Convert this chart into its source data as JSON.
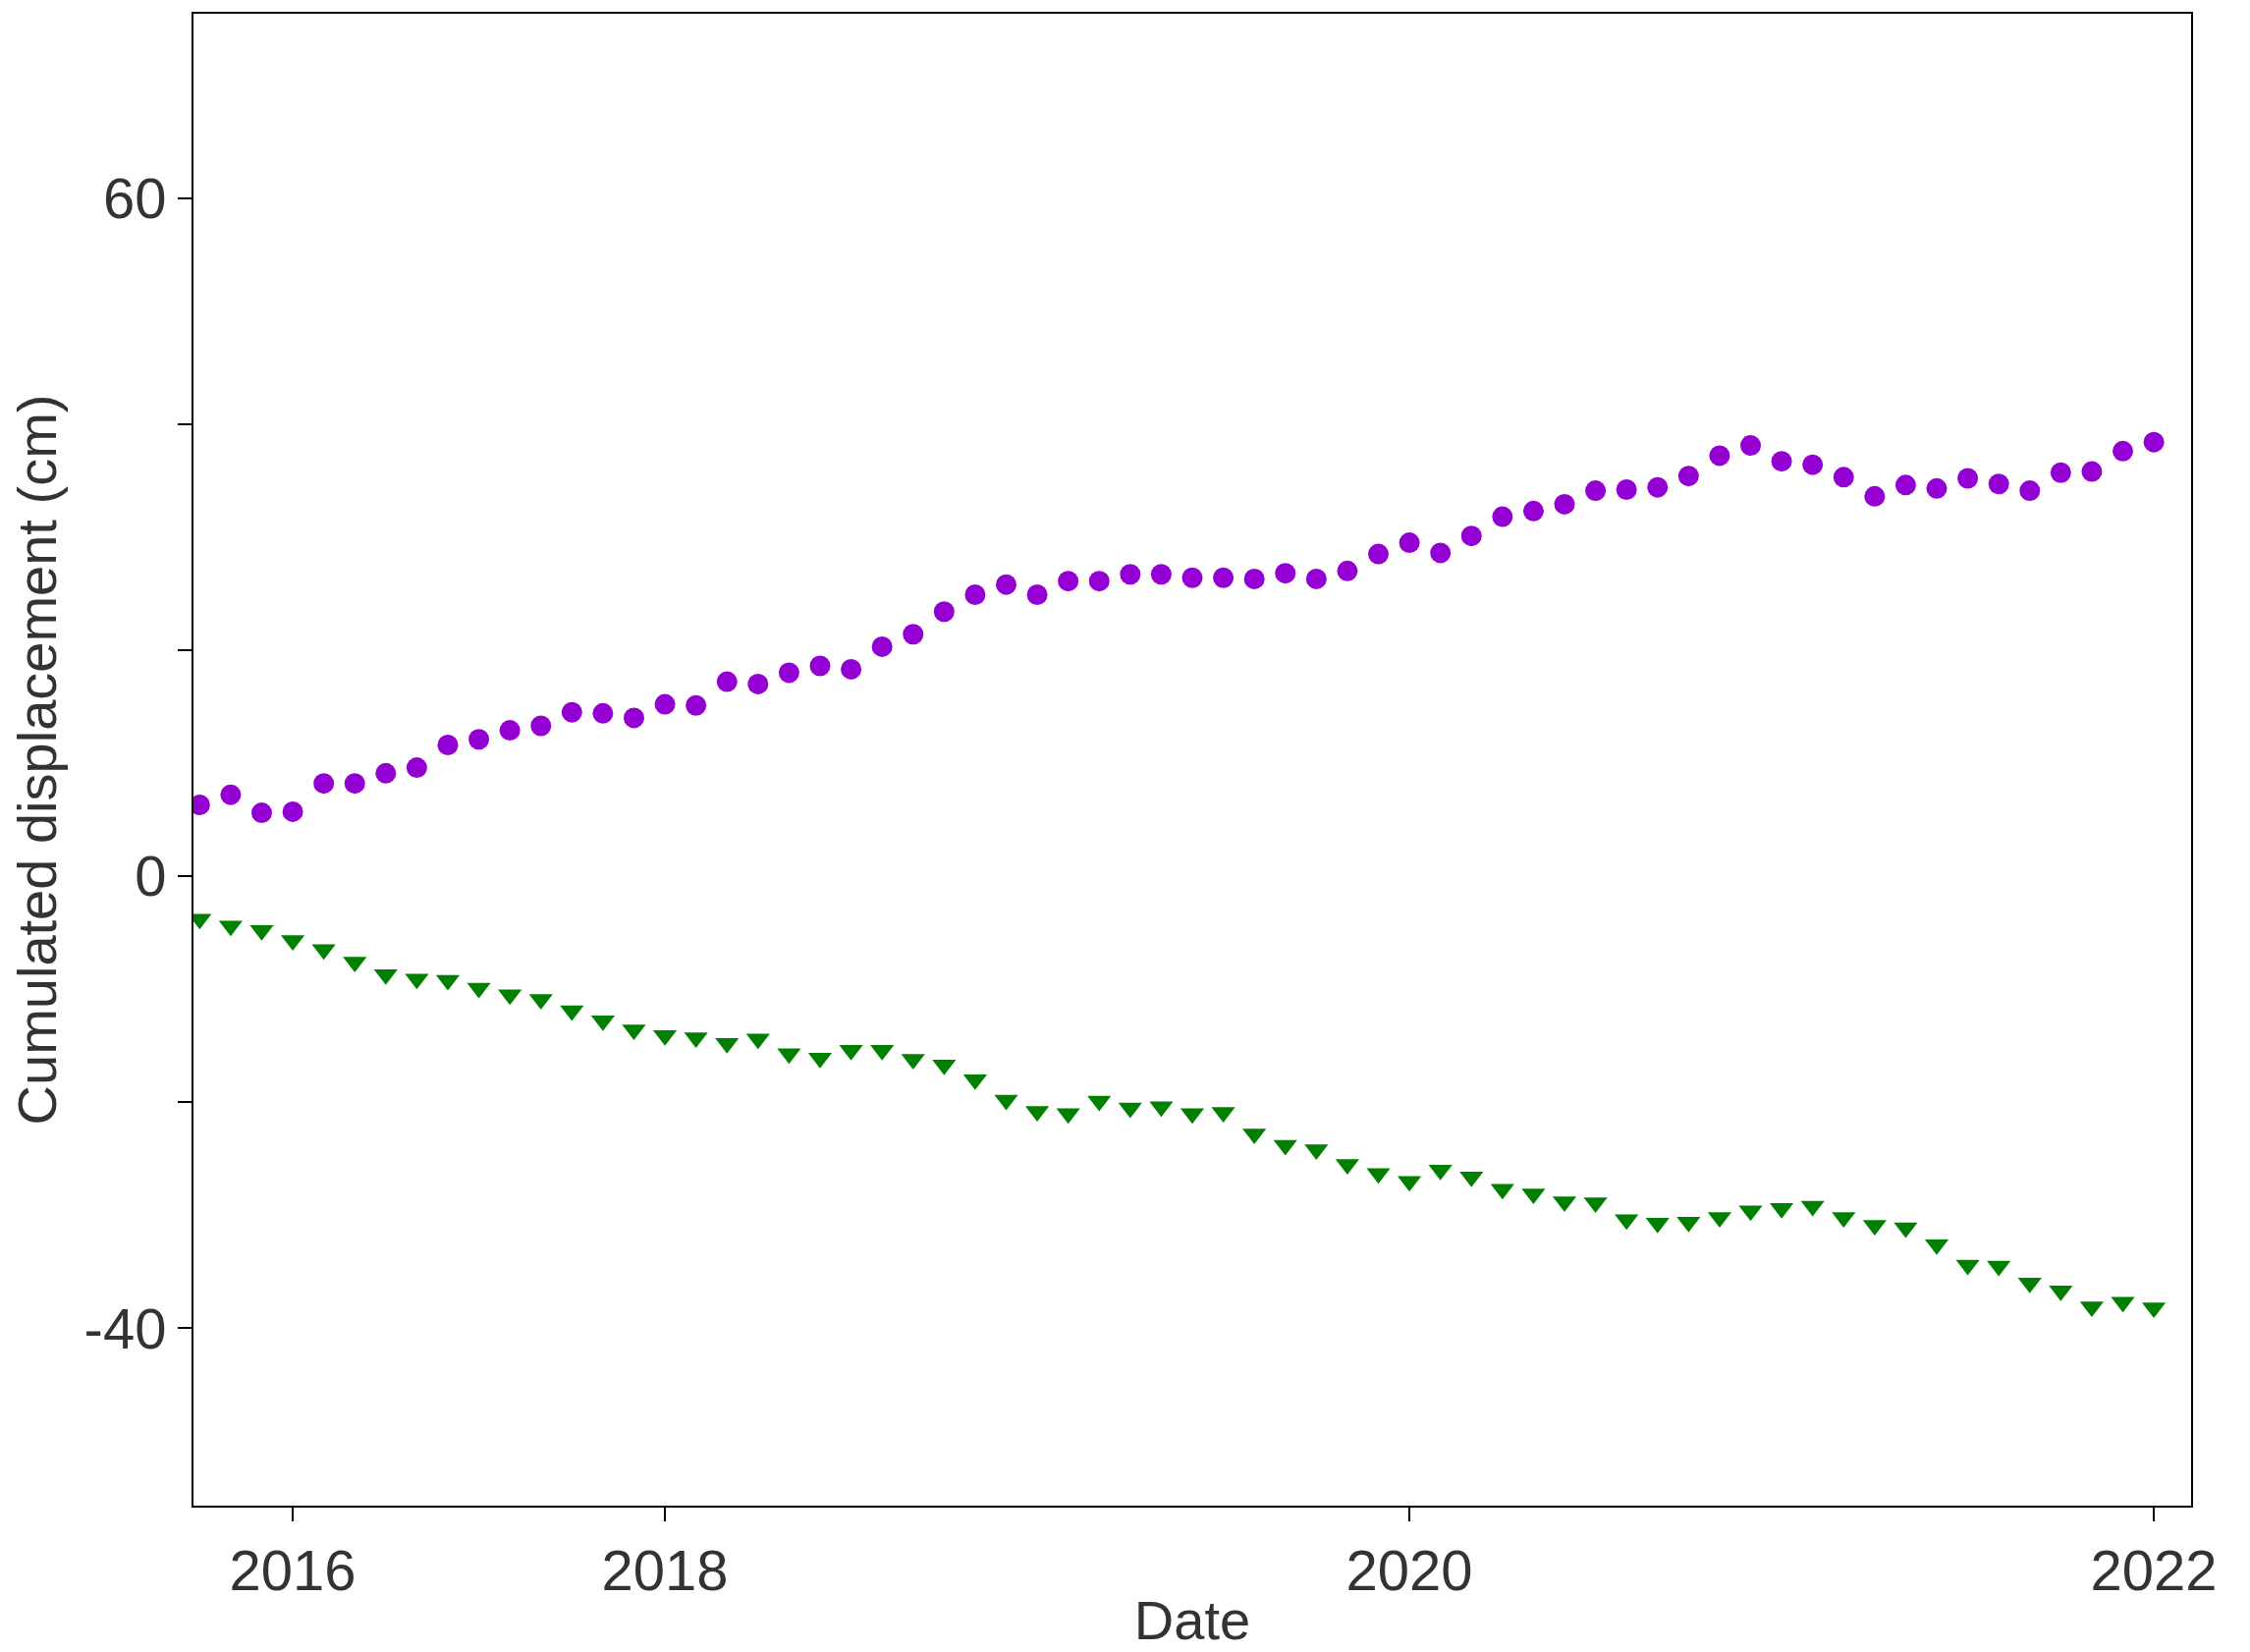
{
  "chart_data": {
    "type": "scatter",
    "xlabel": "Date",
    "ylabel": "Cumulated displacement (cm)",
    "categories": [
      null,
      null,
      null,
      "2016",
      null,
      null,
      null,
      null,
      null,
      null,
      null,
      null,
      null,
      null,
      null,
      "2018",
      null,
      null,
      null,
      null,
      null,
      null,
      null,
      null,
      null,
      null,
      null,
      null,
      null,
      null,
      null,
      null,
      null,
      null,
      null,
      null,
      null,
      null,
      null,
      "2020",
      null,
      null,
      null,
      null,
      null,
      null,
      null,
      null,
      null,
      null,
      null,
      null,
      null,
      null,
      null,
      null,
      null,
      null,
      null,
      null,
      null,
      null,
      null,
      "2022"
    ],
    "ylim": [
      -55.7,
      76.3
    ],
    "yticks": [
      60,
      {
        "value": 40,
        "label": null
      },
      {
        "value": 20,
        "label": null
      },
      0,
      {
        "value": -20,
        "label": null
      },
      -40
    ],
    "series": [
      {
        "color": "#9400d3",
        "marker": "circle",
        "values": [
          6.3,
          7.2,
          5.6,
          5.7,
          8.2,
          8.2,
          9.1,
          9.6,
          11.6,
          12.1,
          12.9,
          13.3,
          14.5,
          14.4,
          14.0,
          15.2,
          15.1,
          17.2,
          17.0,
          18.0,
          18.6,
          18.3,
          20.3,
          21.4,
          23.4,
          24.9,
          25.8,
          24.9,
          26.1,
          26.1,
          26.7,
          26.7,
          26.4,
          26.4,
          26.3,
          26.8,
          26.3,
          27.0,
          28.5,
          29.5,
          28.6,
          30.1,
          31.8,
          32.3,
          32.9,
          34.1,
          34.2,
          34.4,
          35.4,
          37.2,
          38.1,
          36.7,
          36.4,
          35.3,
          33.6,
          34.6,
          34.3,
          35.2,
          34.7,
          34.1,
          35.7,
          35.8,
          37.6,
          38.4
        ]
      },
      {
        "color": "#008000",
        "marker": "triangle",
        "values": [
          -3.8,
          -4.4,
          -4.8,
          -5.7,
          -6.5,
          -7.6,
          -8.7,
          -9.1,
          -9.2,
          -9.9,
          -10.5,
          -10.9,
          -11.9,
          -12.8,
          -13.6,
          -14.1,
          -14.3,
          -14.8,
          -14.4,
          -15.7,
          -16.1,
          -15.4,
          -15.4,
          -16.2,
          -16.7,
          -18.0,
          -19.8,
          -20.8,
          -21.0,
          -19.9,
          -20.5,
          -20.4,
          -21.0,
          -20.9,
          -22.8,
          -23.8,
          -24.2,
          -25.5,
          -26.3,
          -27.0,
          -26.0,
          -26.6,
          -27.7,
          -28.1,
          -28.8,
          -28.9,
          -30.4,
          -30.7,
          -30.6,
          -30.2,
          -29.6,
          -29.4,
          -29.2,
          -30.2,
          -30.9,
          -31.1,
          -32.6,
          -34.4,
          -34.5,
          -36.0,
          -36.7,
          -38.1,
          -37.7,
          -38.2
        ]
      }
    ]
  }
}
